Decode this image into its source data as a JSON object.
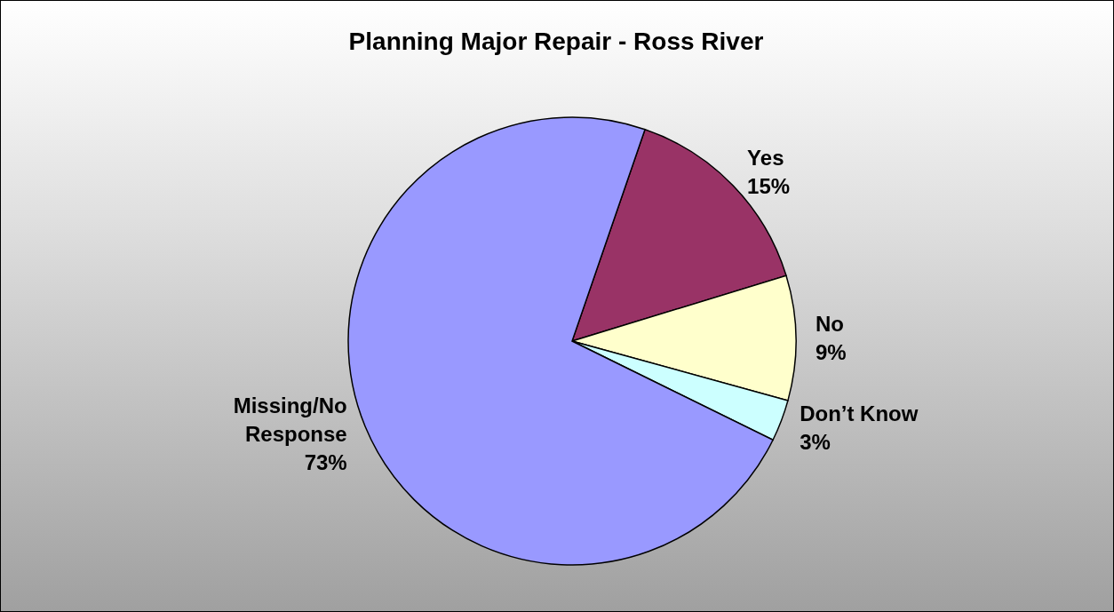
{
  "chart_data": {
    "type": "pie",
    "title": "Planning Major Repair - Ross River",
    "categories": [
      "Yes",
      "No",
      "Don’t Know",
      "Missing/No Response"
    ],
    "values": [
      15,
      9,
      3,
      73
    ],
    "value_labels": [
      "15%",
      "9%",
      "3%",
      "73%"
    ],
    "colors": [
      "#993366",
      "#ffffcc",
      "#ccffff",
      "#9999ff"
    ]
  }
}
